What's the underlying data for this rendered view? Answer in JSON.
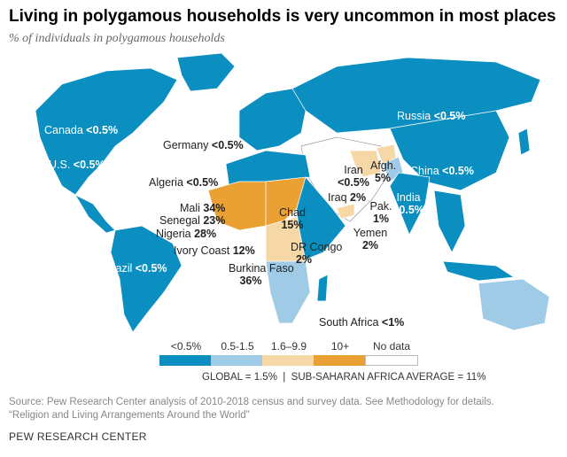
{
  "title": "Living in polygamous households is very uncommon in most places",
  "subtitle": "% of individuals in polygamous households",
  "colors": {
    "lt05": "#0a8fc0",
    "r05_15": "#9fcbe6",
    "r16_99": "#f6d7a6",
    "r10p": "#eaa033",
    "nodata": "#ffffff"
  },
  "labels": [
    {
      "name": "Canada",
      "value": "<0.5%"
    },
    {
      "name": "U.S.",
      "value": "<0.5%"
    },
    {
      "name": "Germany",
      "value": "<0.5%"
    },
    {
      "name": "Algeria",
      "value": "<0.5%"
    },
    {
      "name": "Mali",
      "value": "34%"
    },
    {
      "name": "Senegal",
      "value": "23%"
    },
    {
      "name": "Nigeria",
      "value": "28%"
    },
    {
      "name": "Ivory Coast",
      "value": "12%"
    },
    {
      "name": "Burkina Faso",
      "value": "36%"
    },
    {
      "name": "Chad",
      "value": "15%"
    },
    {
      "name": "DR Congo",
      "value": "2%"
    },
    {
      "name": "Brazil",
      "value": "<0.5%"
    },
    {
      "name": "Russia",
      "value": "<0.5%"
    },
    {
      "name": "China",
      "value": "<0.5%"
    },
    {
      "name": "Iran",
      "value": "<0.5%"
    },
    {
      "name": "Afgh.",
      "value": "5%"
    },
    {
      "name": "Iraq",
      "value": "2%"
    },
    {
      "name": "Pak.",
      "value": "1%"
    },
    {
      "name": "India",
      "value": "<0.5%"
    },
    {
      "name": "Yemen",
      "value": "2%"
    },
    {
      "name": "South Africa",
      "value": "<1%"
    }
  ],
  "legend": [
    {
      "label": "<0.5%",
      "color": "#0a8fc0"
    },
    {
      "label": "0.5-1.5",
      "color": "#9fcbe6"
    },
    {
      "label": "1.6–9.9",
      "color": "#f6d7a6"
    },
    {
      "label": "10+",
      "color": "#eaa033"
    },
    {
      "label": "No data",
      "color": "#ffffff"
    }
  ],
  "note": "GLOBAL = 1.5%  |  SUB-SAHARAN AFRICA AVERAGE = 11%",
  "source_line1": "Source: Pew Research Center analysis of 2010-2018 census and survey data. See Methodology for details.",
  "source_line2": "“Religion and Living Arrangements Around the World”",
  "brand": "PEW RESEARCH CENTER"
}
